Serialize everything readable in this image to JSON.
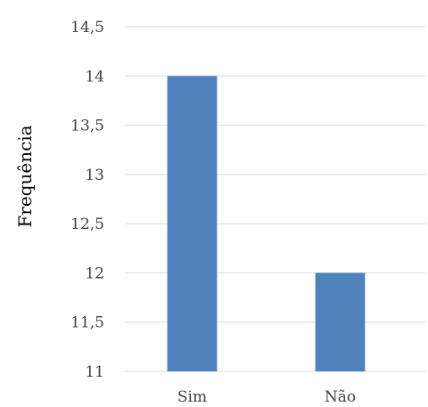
{
  "chart_data": {
    "type": "bar",
    "title": "",
    "xlabel": "",
    "ylabel": "Frequência",
    "categories": [
      "Sim",
      "Não"
    ],
    "values": [
      14,
      12
    ],
    "ylim": [
      11,
      14.5
    ],
    "yticks": [
      11,
      11.5,
      12,
      12.5,
      13,
      13.5,
      14,
      14.5
    ],
    "ytick_labels": [
      "11",
      "11,5",
      "12",
      "12,5",
      "13",
      "13,5",
      "14",
      "14,5"
    ],
    "grid": true,
    "legend": "none",
    "bar_color": "#4f81bd"
  }
}
